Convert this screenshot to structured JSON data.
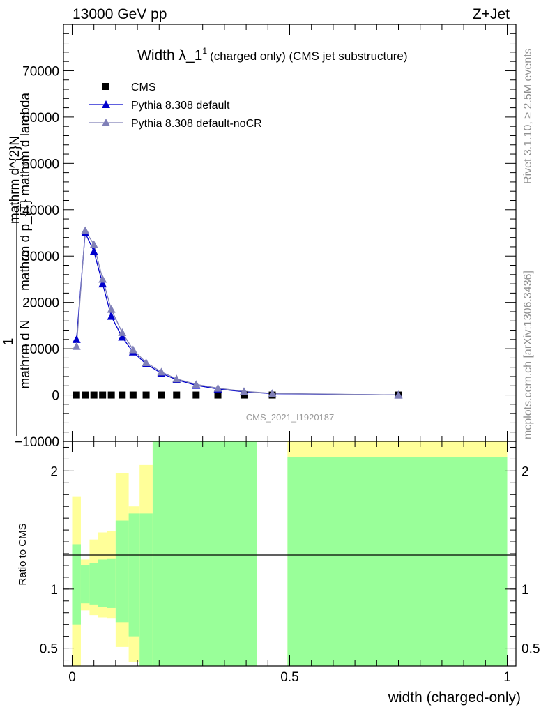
{
  "header": {
    "energy_label": "13000 GeV pp",
    "process_label": "Z+Jet",
    "rivet_label": "Rivet 3.1.10, ≥ 2.5M events",
    "mcplots_label": "mcplots.cern.ch [arXiv:1306.3436]"
  },
  "chart_data": [
    {
      "type": "scatter",
      "title_main": "Width λ_1",
      "title_sup": "1",
      "title_rest": "(charged only) (CMS jet substructure)",
      "watermark": "CMS_2021_I1920187",
      "ylabel_lines": [
        "1",
        "mathrm d N",
        "mathrm d mathrm d p",
        "mathrm d lambda",
        "mathrm d^2N"
      ],
      "ylabel_display": {
        "line1": "mathrm d^{2}N",
        "line2": "mathrm d p_{T} mathrm d lambda",
        "num": "1",
        "den": "mathrm d N"
      },
      "xlim": [
        -0.02,
        1.02
      ],
      "ylim": [
        -10000,
        80000
      ],
      "yticks": [
        -10000,
        0,
        10000,
        20000,
        30000,
        40000,
        50000,
        60000,
        70000
      ],
      "ytick_labels": [
        "−10000",
        "0",
        "10000",
        "20000",
        "30000",
        "40000",
        "50000",
        "60000",
        "70000"
      ],
      "legend_position": "top-left",
      "series": [
        {
          "name": "CMS",
          "color": "#000000",
          "marker": "square",
          "x": [
            0.01,
            0.03,
            0.05,
            0.07,
            0.09,
            0.115,
            0.14,
            0.17,
            0.205,
            0.24,
            0.285,
            0.335,
            0.395,
            0.46,
            0.75
          ],
          "values": [
            0,
            0,
            0,
            0,
            0,
            0,
            0,
            0,
            0,
            0,
            0,
            0,
            0,
            0,
            0
          ]
        },
        {
          "name": "Pythia 8.308 default",
          "color": "#0000cc",
          "marker": "triangle",
          "x": [
            0.01,
            0.03,
            0.05,
            0.07,
            0.09,
            0.115,
            0.14,
            0.17,
            0.205,
            0.24,
            0.285,
            0.335,
            0.395,
            0.46,
            0.75
          ],
          "values": [
            12000,
            35000,
            31000,
            24000,
            17000,
            12500,
            9300,
            6700,
            4700,
            3300,
            2100,
            1300,
            700,
            300,
            20
          ]
        },
        {
          "name": "Pythia 8.308 default-noCR",
          "color": "#8080b8",
          "marker": "triangle",
          "x": [
            0.01,
            0.03,
            0.05,
            0.07,
            0.09,
            0.115,
            0.14,
            0.17,
            0.205,
            0.24,
            0.285,
            0.335,
            0.395,
            0.46,
            0.75
          ],
          "values": [
            10500,
            35500,
            32500,
            25000,
            18500,
            13500,
            9800,
            7000,
            5000,
            3500,
            2300,
            1500,
            800,
            350,
            25
          ]
        }
      ]
    },
    {
      "type": "area",
      "ylabel": "Ratio to CMS",
      "xlabel": "width (charged-only)",
      "xlim": [
        -0.02,
        1.02
      ],
      "ylim": [
        0.35,
        2.25
      ],
      "xticks": [
        0,
        0.5,
        1
      ],
      "xtick_labels": [
        "0",
        "0.5",
        "1"
      ],
      "yticks": [
        0.5,
        1,
        2
      ],
      "ytick_labels": [
        "0.5",
        "1",
        "2"
      ],
      "reference_line": 1,
      "bands": {
        "edges": [
          0,
          0.02,
          0.04,
          0.06,
          0.08,
          0.1,
          0.13,
          0.155,
          0.185,
          0.425,
          0.495,
          1.0
        ],
        "green_low": [
          0.7,
          0.88,
          0.87,
          0.85,
          0.84,
          0.72,
          0.6,
          0.2,
          0.2,
          null,
          0.2
        ],
        "green_high": [
          1.38,
          1.2,
          1.22,
          1.25,
          1.26,
          1.58,
          1.64,
          1.64,
          3.0,
          null,
          2.12
        ],
        "yellow_low": [
          0.2,
          0.82,
          0.78,
          0.76,
          0.75,
          0.51,
          0.38,
          0.2,
          0.2,
          null,
          0.2
        ],
        "yellow_high": [
          1.78,
          1.25,
          1.42,
          1.48,
          1.49,
          1.98,
          1.7,
          2.05,
          3.0,
          null,
          2.25
        ]
      }
    }
  ]
}
